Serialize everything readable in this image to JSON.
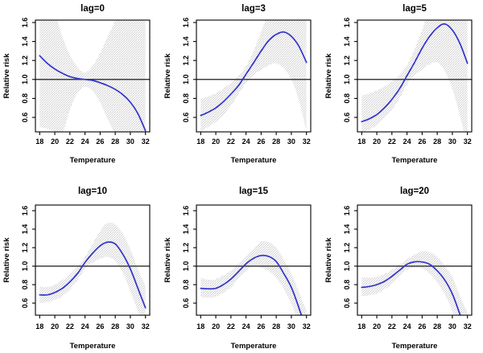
{
  "figure": {
    "background": "#ffffff",
    "colors": {
      "curve": "#3333cc",
      "band_hatch": "#cbcbcb",
      "ref_line": "#3d3d3d",
      "axis": "#000000",
      "text": "#000000"
    },
    "ref_line_y": 1.0
  },
  "chart_data": [
    {
      "type": "line",
      "title": "lag=0",
      "xlabel": "Temperature",
      "ylabel": "Relative risk",
      "xticks": [
        18,
        20,
        22,
        24,
        26,
        28,
        30,
        32
      ],
      "yticks": [
        "0.6",
        "0.8",
        "1.0",
        "1.2",
        "1.4",
        "1.6"
      ],
      "xlim": [
        17.4,
        32.6
      ],
      "ylim": [
        0.45,
        1.65
      ],
      "grid": false,
      "ref_line_y": 1.0,
      "x": [
        18,
        19,
        20,
        21,
        22,
        23,
        24,
        25,
        26,
        27,
        28,
        29,
        30,
        31,
        32
      ],
      "series": [
        {
          "name": "relative risk",
          "values": [
            1.25,
            1.17,
            1.11,
            1.065,
            1.03,
            1.01,
            1.0,
            0.99,
            0.965,
            0.935,
            0.895,
            0.84,
            0.76,
            0.64,
            0.46
          ]
        },
        {
          "name": "ci lower",
          "values": [
            0.5,
            0.48,
            0.455,
            0.44,
            0.68,
            0.86,
            0.925,
            0.88,
            0.76,
            0.58,
            0.42,
            0.25,
            0.1,
            0.0,
            -0.1
          ]
        },
        {
          "name": "ci upper",
          "values": [
            2.2,
            1.95,
            1.72,
            1.45,
            1.26,
            1.13,
            1.07,
            1.14,
            1.28,
            1.45,
            1.62,
            1.83,
            2.0,
            2.2,
            2.4
          ]
        }
      ]
    },
    {
      "type": "line",
      "title": "lag=3",
      "xlabel": "Temperature",
      "ylabel": "Relative risk",
      "xticks": [
        18,
        20,
        22,
        24,
        26,
        28,
        30,
        32
      ],
      "yticks": [
        "0.6",
        "0.8",
        "1.0",
        "1.2",
        "1.4",
        "1.6"
      ],
      "xlim": [
        17.4,
        32.6
      ],
      "ylim": [
        0.45,
        1.65
      ],
      "grid": false,
      "ref_line_y": 1.0,
      "x": [
        18,
        19,
        20,
        21,
        22,
        23,
        24,
        25,
        26,
        27,
        28,
        29,
        30,
        31,
        32
      ],
      "series": [
        {
          "name": "relative risk",
          "values": [
            0.62,
            0.655,
            0.7,
            0.765,
            0.845,
            0.935,
            1.055,
            1.175,
            1.3,
            1.41,
            1.475,
            1.5,
            1.455,
            1.35,
            1.18
          ]
        },
        {
          "name": "ci lower",
          "values": [
            0.455,
            0.5,
            0.555,
            0.63,
            0.725,
            0.845,
            0.965,
            1.05,
            1.1,
            1.15,
            1.17,
            1.12,
            1.0,
            0.78,
            0.45
          ]
        },
        {
          "name": "ci upper",
          "values": [
            0.8,
            0.82,
            0.855,
            0.905,
            0.965,
            1.04,
            1.14,
            1.3,
            1.5,
            1.72,
            1.95,
            2.1,
            2.2,
            2.3,
            2.4
          ]
        }
      ]
    },
    {
      "type": "line",
      "title": "lag=5",
      "xlabel": "Temperature",
      "ylabel": "Relative risk",
      "xticks": [
        18,
        20,
        22,
        24,
        26,
        28,
        30,
        32
      ],
      "yticks": [
        "0.6",
        "0.8",
        "1.0",
        "1.2",
        "1.4",
        "1.6"
      ],
      "xlim": [
        17.4,
        32.6
      ],
      "ylim": [
        0.45,
        1.65
      ],
      "grid": false,
      "ref_line_y": 1.0,
      "x": [
        18,
        19,
        20,
        21,
        22,
        23,
        24,
        25,
        26,
        27,
        28,
        29,
        30,
        31,
        32
      ],
      "series": [
        {
          "name": "relative risk",
          "values": [
            0.555,
            0.585,
            0.63,
            0.7,
            0.79,
            0.9,
            1.04,
            1.18,
            1.33,
            1.455,
            1.545,
            1.585,
            1.52,
            1.38,
            1.17
          ]
        },
        {
          "name": "ci lower",
          "values": [
            0.44,
            0.47,
            0.52,
            0.59,
            0.68,
            0.8,
            0.95,
            1.04,
            1.105,
            1.16,
            1.18,
            1.09,
            0.9,
            0.62,
            0.3
          ]
        },
        {
          "name": "ci upper",
          "values": [
            0.83,
            0.85,
            0.885,
            0.925,
            0.975,
            1.05,
            1.15,
            1.32,
            1.52,
            1.77,
            2.0,
            2.2,
            2.3,
            2.4,
            2.5
          ]
        }
      ]
    },
    {
      "type": "line",
      "title": "lag=10",
      "xlabel": "Temperature",
      "ylabel": "Relative risk",
      "xticks": [
        18,
        20,
        22,
        24,
        26,
        28,
        30,
        32
      ],
      "yticks": [
        "0.6",
        "0.8",
        "1.0",
        "1.2",
        "1.4",
        "1.6"
      ],
      "xlim": [
        17.4,
        32.6
      ],
      "ylim": [
        0.45,
        1.65
      ],
      "grid": false,
      "ref_line_y": 1.0,
      "x": [
        18,
        19,
        20,
        21,
        22,
        23,
        24,
        25,
        26,
        27,
        28,
        29,
        30,
        31,
        32
      ],
      "series": [
        {
          "name": "relative risk",
          "values": [
            0.69,
            0.69,
            0.715,
            0.76,
            0.83,
            0.92,
            1.04,
            1.14,
            1.22,
            1.26,
            1.24,
            1.13,
            0.97,
            0.76,
            0.55
          ]
        },
        {
          "name": "ci lower",
          "values": [
            0.6,
            0.61,
            0.635,
            0.675,
            0.745,
            0.85,
            0.97,
            1.04,
            1.08,
            1.1,
            1.055,
            0.93,
            0.73,
            0.51,
            0.3
          ]
        },
        {
          "name": "ci upper",
          "values": [
            0.78,
            0.775,
            0.8,
            0.85,
            0.91,
            0.99,
            1.1,
            1.24,
            1.38,
            1.465,
            1.45,
            1.35,
            1.18,
            0.97,
            0.79
          ]
        }
      ]
    },
    {
      "type": "line",
      "title": "lag=15",
      "xlabel": "Temperature",
      "ylabel": "Relative risk",
      "xticks": [
        18,
        20,
        22,
        24,
        26,
        28,
        30,
        32
      ],
      "yticks": [
        "0.6",
        "0.8",
        "1.0",
        "1.2",
        "1.4",
        "1.6"
      ],
      "xlim": [
        17.4,
        32.6
      ],
      "ylim": [
        0.45,
        1.65
      ],
      "grid": false,
      "ref_line_y": 1.0,
      "x": [
        18,
        19,
        20,
        21,
        22,
        23,
        24,
        25,
        26,
        27,
        28,
        29,
        30,
        31,
        32
      ],
      "series": [
        {
          "name": "relative risk",
          "values": [
            0.76,
            0.755,
            0.76,
            0.8,
            0.86,
            0.94,
            1.025,
            1.085,
            1.115,
            1.105,
            1.05,
            0.92,
            0.77,
            0.55,
            0.3
          ]
        },
        {
          "name": "ci lower",
          "values": [
            0.665,
            0.66,
            0.67,
            0.71,
            0.77,
            0.865,
            0.955,
            1.0,
            0.985,
            0.945,
            0.875,
            0.755,
            0.595,
            0.38,
            0.15
          ]
        },
        {
          "name": "ci upper",
          "values": [
            0.87,
            0.855,
            0.86,
            0.9,
            0.95,
            1.015,
            1.1,
            1.19,
            1.265,
            1.26,
            1.2,
            1.07,
            0.92,
            0.72,
            0.52
          ]
        }
      ]
    },
    {
      "type": "line",
      "title": "lag=20",
      "xlabel": "Temperature",
      "ylabel": "Relative risk",
      "xticks": [
        18,
        20,
        22,
        24,
        26,
        28,
        30,
        32
      ],
      "yticks": [
        "0.6",
        "0.8",
        "1.0",
        "1.2",
        "1.4",
        "1.6"
      ],
      "xlim": [
        17.4,
        32.6
      ],
      "ylim": [
        0.45,
        1.65
      ],
      "grid": false,
      "ref_line_y": 1.0,
      "x": [
        18,
        19,
        20,
        21,
        22,
        23,
        24,
        25,
        26,
        27,
        28,
        29,
        30,
        31,
        32
      ],
      "series": [
        {
          "name": "relative risk",
          "values": [
            0.77,
            0.78,
            0.8,
            0.835,
            0.89,
            0.955,
            1.02,
            1.047,
            1.045,
            1.02,
            0.95,
            0.85,
            0.7,
            0.48,
            0.25
          ]
        },
        {
          "name": "ci lower",
          "values": [
            0.675,
            0.685,
            0.705,
            0.75,
            0.805,
            0.885,
            0.96,
            0.985,
            0.975,
            0.92,
            0.825,
            0.695,
            0.52,
            0.29,
            0.05
          ]
        },
        {
          "name": "ci upper",
          "values": [
            0.88,
            0.875,
            0.885,
            0.915,
            0.96,
            1.015,
            1.075,
            1.125,
            1.16,
            1.15,
            1.1,
            1.0,
            0.88,
            0.68,
            0.5
          ]
        }
      ]
    }
  ]
}
